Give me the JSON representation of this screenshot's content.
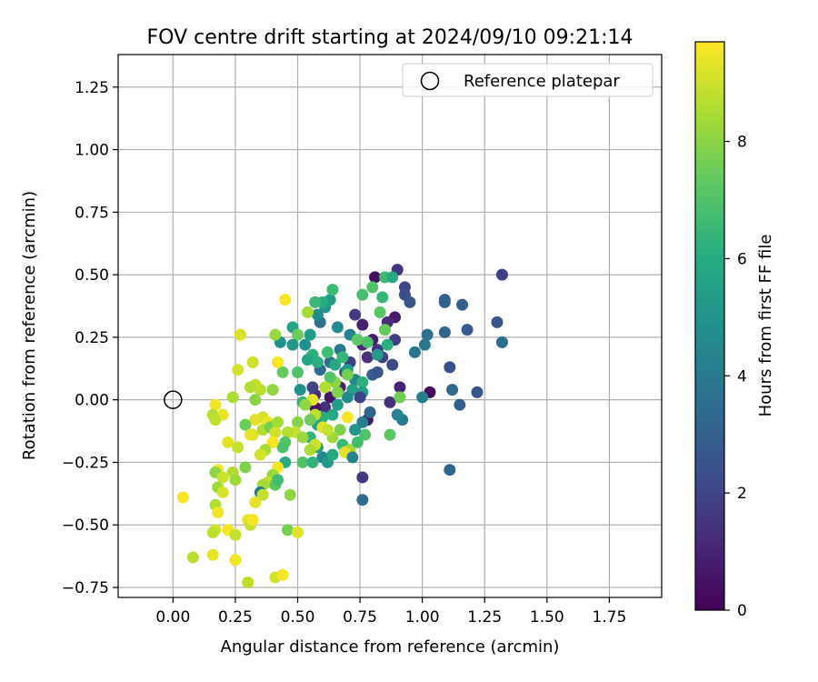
{
  "chart_data": {
    "type": "scatter",
    "title": "FOV centre drift starting at 2024/09/10 09:21:14",
    "xlabel": "Angular distance from reference (arcmin)",
    "ylabel": "Rotation from reference (arcmin)",
    "xlim": [
      -0.22,
      1.96
    ],
    "ylim": [
      -0.79,
      1.38
    ],
    "x_ticks": [
      0.0,
      0.25,
      0.5,
      0.75,
      1.0,
      1.25,
      1.5,
      1.75
    ],
    "x_tick_labels": [
      "0.00",
      "0.25",
      "0.50",
      "0.75",
      "1.00",
      "1.25",
      "1.50",
      "1.75"
    ],
    "y_ticks": [
      -0.75,
      -0.5,
      -0.25,
      0.0,
      0.25,
      0.5,
      0.75,
      1.0,
      1.25
    ],
    "y_tick_labels": [
      "−0.75",
      "−0.50",
      "−0.25",
      "0.00",
      "0.25",
      "0.50",
      "0.75",
      "1.00",
      "1.25"
    ],
    "grid": true,
    "legend": {
      "placement": "top-right",
      "entries": [
        {
          "label": "Reference platepar",
          "marker": "open-circle"
        }
      ]
    },
    "reference_point": {
      "x": 0.0,
      "y": 0.0
    },
    "colorbar": {
      "label": "Hours from first FF file",
      "colormap": "viridis",
      "range": [
        0,
        9.7
      ],
      "ticks": [
        0,
        2,
        4,
        6,
        8
      ],
      "tick_labels": [
        "0",
        "2",
        "4",
        "6",
        "8"
      ]
    },
    "points": [
      {
        "x": 0.9,
        "y": 0.52,
        "h": 1.5
      },
      {
        "x": 0.81,
        "y": 0.49,
        "h": 0.4
      },
      {
        "x": 0.93,
        "y": 0.45,
        "h": 2.1
      },
      {
        "x": 0.93,
        "y": 0.42,
        "h": 2.3
      },
      {
        "x": 0.95,
        "y": 0.39,
        "h": 2.7
      },
      {
        "x": 1.32,
        "y": 0.5,
        "h": 1.9
      },
      {
        "x": 1.09,
        "y": 0.4,
        "h": 2.9
      },
      {
        "x": 1.09,
        "y": 0.39,
        "h": 3.1
      },
      {
        "x": 1.16,
        "y": 0.38,
        "h": 3.0
      },
      {
        "x": 1.3,
        "y": 0.31,
        "h": 2.6
      },
      {
        "x": 1.18,
        "y": 0.28,
        "h": 2.8
      },
      {
        "x": 1.09,
        "y": 0.27,
        "h": 3.2
      },
      {
        "x": 1.32,
        "y": 0.23,
        "h": 3.5
      },
      {
        "x": 0.89,
        "y": 0.33,
        "h": 0.7
      },
      {
        "x": 0.86,
        "y": 0.31,
        "h": 1.2
      },
      {
        "x": 0.89,
        "y": 0.24,
        "h": 1.8
      },
      {
        "x": 1.02,
        "y": 0.26,
        "h": 3.6
      },
      {
        "x": 1.01,
        "y": 0.22,
        "h": 3.8
      },
      {
        "x": 0.97,
        "y": 0.19,
        "h": 3.9
      },
      {
        "x": 1.11,
        "y": 0.13,
        "h": 2.4
      },
      {
        "x": 1.03,
        "y": 0.03,
        "h": 0.3
      },
      {
        "x": 1.12,
        "y": 0.04,
        "h": 3.3
      },
      {
        "x": 1.22,
        "y": 0.03,
        "h": 2.6
      },
      {
        "x": 1.15,
        "y": -0.02,
        "h": 2.9
      },
      {
        "x": 1.0,
        "y": 0.01,
        "h": 4.2
      },
      {
        "x": 0.91,
        "y": 0.05,
        "h": 1.0
      },
      {
        "x": 0.87,
        "y": -0.01,
        "h": 1.4
      },
      {
        "x": 0.92,
        "y": -0.08,
        "h": 4.0
      },
      {
        "x": 0.9,
        "y": -0.06,
        "h": 4.3
      },
      {
        "x": 0.78,
        "y": -0.08,
        "h": 0.6
      },
      {
        "x": 0.76,
        "y": -0.09,
        "h": 4.1
      },
      {
        "x": 0.76,
        "y": -0.31,
        "h": 1.6
      },
      {
        "x": 0.76,
        "y": -0.4,
        "h": 3.4
      },
      {
        "x": 1.11,
        "y": -0.28,
        "h": 3.2
      },
      {
        "x": 0.91,
        "y": 0.01,
        "h": 7.6
      },
      {
        "x": 0.87,
        "y": -0.14,
        "h": 7.2
      },
      {
        "x": 0.77,
        "y": -0.14,
        "h": 7.0
      },
      {
        "x": 0.8,
        "y": 0.1,
        "h": 3.0
      },
      {
        "x": 0.82,
        "y": 0.11,
        "h": 2.5
      },
      {
        "x": 0.78,
        "y": 0.17,
        "h": 1.3
      },
      {
        "x": 0.76,
        "y": 0.22,
        "h": 1.1
      },
      {
        "x": 0.8,
        "y": 0.24,
        "h": 0.8
      },
      {
        "x": 0.82,
        "y": 0.2,
        "h": 1.5
      },
      {
        "x": 0.84,
        "y": 0.17,
        "h": 2.0
      },
      {
        "x": 0.88,
        "y": 0.14,
        "h": 2.2
      },
      {
        "x": 0.76,
        "y": 0.3,
        "h": 0.9
      },
      {
        "x": 0.73,
        "y": 0.34,
        "h": 1.7
      },
      {
        "x": 0.71,
        "y": 0.15,
        "h": 1.9
      },
      {
        "x": 0.69,
        "y": 0.11,
        "h": 2.3
      },
      {
        "x": 0.67,
        "y": 0.05,
        "h": 1.0
      },
      {
        "x": 0.63,
        "y": 0.01,
        "h": 0.6
      },
      {
        "x": 0.61,
        "y": -0.03,
        "h": 1.4
      },
      {
        "x": 0.57,
        "y": -0.03,
        "h": 0.5
      },
      {
        "x": 0.57,
        "y": 0.02,
        "h": 1.2
      },
      {
        "x": 0.56,
        "y": 0.05,
        "h": 2.0
      },
      {
        "x": 0.59,
        "y": 0.12,
        "h": 3.3
      },
      {
        "x": 0.63,
        "y": 0.15,
        "h": 3.6
      },
      {
        "x": 0.67,
        "y": 0.2,
        "h": 3.9
      },
      {
        "x": 0.71,
        "y": 0.26,
        "h": 4.4
      },
      {
        "x": 0.66,
        "y": 0.29,
        "h": 4.6
      },
      {
        "x": 0.59,
        "y": 0.31,
        "h": 3.7
      },
      {
        "x": 0.58,
        "y": 0.34,
        "h": 4.7
      },
      {
        "x": 0.61,
        "y": 0.37,
        "h": 5.0
      },
      {
        "x": 0.63,
        "y": 0.4,
        "h": 5.4
      },
      {
        "x": 0.64,
        "y": 0.44,
        "h": 6.6
      },
      {
        "x": 0.6,
        "y": 0.39,
        "h": 6.0
      },
      {
        "x": 0.54,
        "y": 0.35,
        "h": 8.4
      },
      {
        "x": 0.48,
        "y": 0.29,
        "h": 5.6
      },
      {
        "x": 0.43,
        "y": 0.23,
        "h": 4.9
      },
      {
        "x": 0.5,
        "y": 0.26,
        "h": 7.5
      },
      {
        "x": 0.48,
        "y": 0.22,
        "h": 5.2
      },
      {
        "x": 0.53,
        "y": 0.22,
        "h": 4.8
      },
      {
        "x": 0.55,
        "y": 0.26,
        "h": 5.3
      },
      {
        "x": 0.56,
        "y": 0.18,
        "h": 6.2
      },
      {
        "x": 0.54,
        "y": 0.16,
        "h": 5.7
      },
      {
        "x": 0.58,
        "y": 0.15,
        "h": 6.1
      },
      {
        "x": 0.62,
        "y": 0.19,
        "h": 6.7
      },
      {
        "x": 0.65,
        "y": 0.14,
        "h": 5.8
      },
      {
        "x": 0.68,
        "y": 0.17,
        "h": 6.4
      },
      {
        "x": 0.7,
        "y": 0.12,
        "h": 5.1
      },
      {
        "x": 0.73,
        "y": 0.08,
        "h": 4.5
      },
      {
        "x": 0.72,
        "y": 0.04,
        "h": 5.5
      },
      {
        "x": 0.7,
        "y": 0.01,
        "h": 4.7
      },
      {
        "x": 0.66,
        "y": -0.02,
        "h": 5.4
      },
      {
        "x": 0.64,
        "y": -0.06,
        "h": 5.9
      },
      {
        "x": 0.6,
        "y": -0.07,
        "h": 6.1
      },
      {
        "x": 0.58,
        "y": -0.1,
        "h": 5.6
      },
      {
        "x": 0.52,
        "y": -0.01,
        "h": 6.3
      },
      {
        "x": 0.51,
        "y": 0.04,
        "h": 4.9
      },
      {
        "x": 0.5,
        "y": 0.11,
        "h": 7.0
      },
      {
        "x": 0.44,
        "y": 0.11,
        "h": 7.4
      },
      {
        "x": 0.42,
        "y": 0.15,
        "h": 9.6
      },
      {
        "x": 0.41,
        "y": 0.26,
        "h": 8.2
      },
      {
        "x": 0.45,
        "y": 0.4,
        "h": 9.6
      },
      {
        "x": 0.57,
        "y": 0.39,
        "h": 6.5
      },
      {
        "x": 0.76,
        "y": 0.42,
        "h": 6.8
      },
      {
        "x": 0.8,
        "y": 0.45,
        "h": 7.0
      },
      {
        "x": 0.84,
        "y": 0.41,
        "h": 6.4
      },
      {
        "x": 0.85,
        "y": 0.49,
        "h": 6.6
      },
      {
        "x": 0.88,
        "y": 0.49,
        "h": 5.9
      },
      {
        "x": 0.83,
        "y": 0.35,
        "h": 7.2
      },
      {
        "x": 0.85,
        "y": 0.28,
        "h": 7.4
      },
      {
        "x": 0.86,
        "y": 0.22,
        "h": 6.1
      },
      {
        "x": 0.82,
        "y": 0.18,
        "h": 5.3
      },
      {
        "x": 0.78,
        "y": 0.23,
        "h": 6.9
      },
      {
        "x": 0.74,
        "y": 0.24,
        "h": 7.3
      },
      {
        "x": 0.76,
        "y": 0.07,
        "h": 6.2
      },
      {
        "x": 0.76,
        "y": 0.03,
        "h": 5.4
      },
      {
        "x": 0.7,
        "y": 0.1,
        "h": 7.7
      },
      {
        "x": 0.65,
        "y": 0.07,
        "h": 8.0
      },
      {
        "x": 0.66,
        "y": 0.03,
        "h": 7.8
      },
      {
        "x": 0.63,
        "y": 0.09,
        "h": 7.1
      },
      {
        "x": 0.61,
        "y": 0.05,
        "h": 8.6
      },
      {
        "x": 0.56,
        "y": 0.0,
        "h": 9.4
      },
      {
        "x": 0.57,
        "y": -0.06,
        "h": 8.8
      },
      {
        "x": 0.55,
        "y": -0.08,
        "h": 7.6
      },
      {
        "x": 0.53,
        "y": -0.02,
        "h": 8.1
      },
      {
        "x": 0.5,
        "y": -0.09,
        "h": 7.9
      },
      {
        "x": 0.49,
        "y": -0.13,
        "h": 8.9
      },
      {
        "x": 0.55,
        "y": -0.15,
        "h": 6.3
      },
      {
        "x": 0.58,
        "y": -0.19,
        "h": 5.5
      },
      {
        "x": 0.6,
        "y": -0.23,
        "h": 4.5
      },
      {
        "x": 0.62,
        "y": -0.25,
        "h": 5.2
      },
      {
        "x": 0.64,
        "y": -0.22,
        "h": 5.8
      },
      {
        "x": 0.6,
        "y": -0.11,
        "h": 9.3
      },
      {
        "x": 0.57,
        "y": -0.18,
        "h": 9.0
      },
      {
        "x": 0.55,
        "y": -0.2,
        "h": 8.5
      },
      {
        "x": 0.52,
        "y": -0.15,
        "h": 8.2
      },
      {
        "x": 0.46,
        "y": -0.13,
        "h": 8.6
      },
      {
        "x": 0.45,
        "y": -0.17,
        "h": 7.1
      },
      {
        "x": 0.44,
        "y": -0.19,
        "h": 6.9
      },
      {
        "x": 0.45,
        "y": -0.25,
        "h": 6.0
      },
      {
        "x": 0.52,
        "y": -0.25,
        "h": 7.0
      },
      {
        "x": 0.56,
        "y": -0.25,
        "h": 6.3
      },
      {
        "x": 0.68,
        "y": -0.18,
        "h": 6.5
      },
      {
        "x": 0.71,
        "y": -0.2,
        "h": 8.4
      },
      {
        "x": 0.69,
        "y": -0.21,
        "h": 9.3
      },
      {
        "x": 0.74,
        "y": -0.17,
        "h": 6.7
      },
      {
        "x": 0.72,
        "y": -0.23,
        "h": 4.3
      },
      {
        "x": 0.73,
        "y": -0.12,
        "h": 5.0
      },
      {
        "x": 0.7,
        "y": -0.07,
        "h": 9.6
      },
      {
        "x": 0.67,
        "y": -0.12,
        "h": 7.8
      },
      {
        "x": 0.64,
        "y": -0.15,
        "h": 8.3
      },
      {
        "x": 0.62,
        "y": -0.12,
        "h": 8.9
      },
      {
        "x": 0.4,
        "y": 0.04,
        "h": 8.1
      },
      {
        "x": 0.35,
        "y": 0.04,
        "h": 8.7
      },
      {
        "x": 0.33,
        "y": 0.06,
        "h": 8.9
      },
      {
        "x": 0.33,
        "y": 0.0,
        "h": 8.0
      },
      {
        "x": 0.36,
        "y": -0.07,
        "h": 9.1
      },
      {
        "x": 0.33,
        "y": -0.08,
        "h": 9.3
      },
      {
        "x": 0.38,
        "y": -0.09,
        "h": 9.5
      },
      {
        "x": 0.36,
        "y": -0.12,
        "h": 8.6
      },
      {
        "x": 0.32,
        "y": -0.14,
        "h": 9.2
      },
      {
        "x": 0.39,
        "y": -0.11,
        "h": 7.6
      },
      {
        "x": 0.42,
        "y": -0.09,
        "h": 8.4
      },
      {
        "x": 0.41,
        "y": -0.13,
        "h": 9.0
      },
      {
        "x": 0.4,
        "y": -0.17,
        "h": 9.6
      },
      {
        "x": 0.37,
        "y": -0.2,
        "h": 8.5
      },
      {
        "x": 0.35,
        "y": -0.22,
        "h": 9.1
      },
      {
        "x": 0.42,
        "y": -0.27,
        "h": 9.6
      },
      {
        "x": 0.4,
        "y": -0.3,
        "h": 8.2
      },
      {
        "x": 0.38,
        "y": -0.33,
        "h": 8.8
      },
      {
        "x": 0.36,
        "y": -0.34,
        "h": 8.4
      },
      {
        "x": 0.35,
        "y": -0.37,
        "h": 3.9
      },
      {
        "x": 0.36,
        "y": -0.38,
        "h": 8.9
      },
      {
        "x": 0.33,
        "y": -0.41,
        "h": 9.3
      },
      {
        "x": 0.41,
        "y": -0.34,
        "h": 7.2
      },
      {
        "x": 0.42,
        "y": -0.32,
        "h": 6.7
      },
      {
        "x": 0.47,
        "y": -0.38,
        "h": 8.1
      },
      {
        "x": 0.3,
        "y": -0.48,
        "h": 9.4
      },
      {
        "x": 0.31,
        "y": -0.5,
        "h": 8.9
      },
      {
        "x": 0.32,
        "y": -0.48,
        "h": 9.6
      },
      {
        "x": 0.46,
        "y": -0.52,
        "h": 7.7
      },
      {
        "x": 0.5,
        "y": -0.53,
        "h": 9.3
      },
      {
        "x": 0.24,
        "y": -0.29,
        "h": 8.6
      },
      {
        "x": 0.25,
        "y": -0.32,
        "h": 8.3
      },
      {
        "x": 0.26,
        "y": -0.19,
        "h": 8.9
      },
      {
        "x": 0.29,
        "y": -0.1,
        "h": 7.5
      },
      {
        "x": 0.31,
        "y": -0.14,
        "h": 9.4
      },
      {
        "x": 0.29,
        "y": -0.27,
        "h": 7.8
      },
      {
        "x": 0.24,
        "y": 0.01,
        "h": 8.5
      },
      {
        "x": 0.26,
        "y": 0.12,
        "h": 9.1
      },
      {
        "x": 0.27,
        "y": 0.26,
        "h": 9.2
      },
      {
        "x": 0.32,
        "y": 0.15,
        "h": 9.0
      },
      {
        "x": 0.31,
        "y": 0.05,
        "h": 8.6
      },
      {
        "x": 0.17,
        "y": -0.02,
        "h": 9.5
      },
      {
        "x": 0.16,
        "y": -0.06,
        "h": 8.7
      },
      {
        "x": 0.2,
        "y": -0.06,
        "h": 9.4
      },
      {
        "x": 0.17,
        "y": -0.08,
        "h": 8.8
      },
      {
        "x": 0.22,
        "y": -0.17,
        "h": 9.3
      },
      {
        "x": 0.18,
        "y": -0.28,
        "h": 9.6
      },
      {
        "x": 0.17,
        "y": -0.29,
        "h": 8.1
      },
      {
        "x": 0.2,
        "y": -0.31,
        "h": 9.0
      },
      {
        "x": 0.18,
        "y": -0.35,
        "h": 8.3
      },
      {
        "x": 0.2,
        "y": -0.37,
        "h": 9.2
      },
      {
        "x": 0.17,
        "y": -0.42,
        "h": 8.6
      },
      {
        "x": 0.18,
        "y": -0.45,
        "h": 9.5
      },
      {
        "x": 0.04,
        "y": -0.39,
        "h": 9.6
      },
      {
        "x": 0.17,
        "y": -0.52,
        "h": 9.1
      },
      {
        "x": 0.16,
        "y": -0.53,
        "h": 8.8
      },
      {
        "x": 0.22,
        "y": -0.52,
        "h": 9.6
      },
      {
        "x": 0.25,
        "y": -0.54,
        "h": 8.9
      },
      {
        "x": 0.08,
        "y": -0.63,
        "h": 8.7
      },
      {
        "x": 0.16,
        "y": -0.62,
        "h": 9.4
      },
      {
        "x": 0.25,
        "y": -0.64,
        "h": 9.5
      },
      {
        "x": 0.3,
        "y": -0.73,
        "h": 8.8
      },
      {
        "x": 0.41,
        "y": -0.71,
        "h": 9.1
      },
      {
        "x": 0.44,
        "y": -0.7,
        "h": 9.6
      },
      {
        "x": 0.75,
        "y": 0.01,
        "h": 1.9
      },
      {
        "x": 0.79,
        "y": -0.05,
        "h": 3.2
      }
    ]
  }
}
